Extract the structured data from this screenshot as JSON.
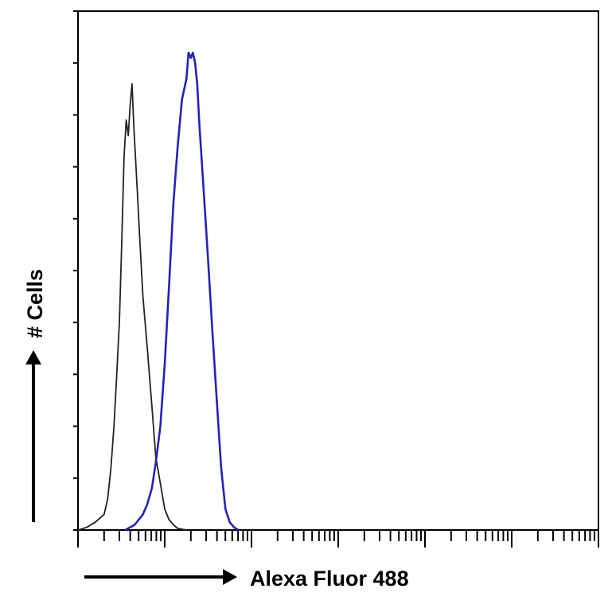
{
  "chart_data": {
    "type": "line",
    "title": "",
    "xlabel": "Alexa Fluor 488",
    "ylabel": "# Cells",
    "x_scale": "log",
    "xlim": [
      1,
      1000000
    ],
    "ylim": [
      0,
      100
    ],
    "x_major_ticks": [
      1,
      10,
      100,
      1000,
      10000,
      100000,
      1000000
    ],
    "y_ticks": [
      0,
      10,
      20,
      30,
      40,
      50,
      60,
      70,
      80,
      90,
      100
    ],
    "grid": false,
    "legend": "none",
    "series": [
      {
        "color": "#222222",
        "points": [
          [
            1.0,
            0
          ],
          [
            1.26,
            0.5
          ],
          [
            1.58,
            1.5
          ],
          [
            2.0,
            3
          ],
          [
            2.2,
            6
          ],
          [
            2.4,
            12
          ],
          [
            2.6,
            20
          ],
          [
            2.8,
            30
          ],
          [
            3.0,
            40
          ],
          [
            3.2,
            56
          ],
          [
            3.4,
            72
          ],
          [
            3.6,
            79
          ],
          [
            3.8,
            76
          ],
          [
            4.0,
            82
          ],
          [
            4.2,
            86
          ],
          [
            4.4,
            78
          ],
          [
            4.8,
            66
          ],
          [
            5.2,
            55
          ],
          [
            5.6,
            45
          ],
          [
            6.3,
            35
          ],
          [
            7.1,
            24
          ],
          [
            7.9,
            14
          ],
          [
            8.9,
            9
          ],
          [
            10.0,
            4
          ],
          [
            11.2,
            2
          ],
          [
            12.6,
            1
          ],
          [
            14.1,
            0.3
          ],
          [
            17.8,
            0
          ]
        ]
      },
      {
        "color": "#2222bb",
        "points": [
          [
            3.5,
            0
          ],
          [
            4.5,
            1
          ],
          [
            5.6,
            3
          ],
          [
            6.3,
            5
          ],
          [
            7.1,
            8
          ],
          [
            7.9,
            13
          ],
          [
            8.9,
            20
          ],
          [
            10.0,
            32
          ],
          [
            11.2,
            47
          ],
          [
            12.6,
            63
          ],
          [
            14.1,
            74
          ],
          [
            15.8,
            83
          ],
          [
            17.8,
            87
          ],
          [
            18.8,
            92
          ],
          [
            20.0,
            91
          ],
          [
            21.1,
            92
          ],
          [
            22.4,
            90
          ],
          [
            23.7,
            86
          ],
          [
            25.1,
            78
          ],
          [
            28.2,
            65
          ],
          [
            31.6,
            52
          ],
          [
            35.5,
            38
          ],
          [
            39.8,
            25
          ],
          [
            44.7,
            12
          ],
          [
            50.1,
            4
          ],
          [
            56.2,
            1.5
          ],
          [
            63.1,
            0.5
          ],
          [
            70.8,
            0
          ]
        ]
      }
    ]
  }
}
